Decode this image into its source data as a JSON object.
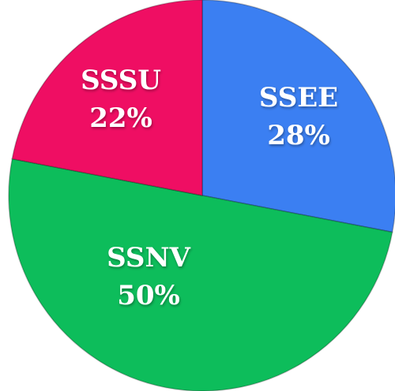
{
  "chart_data": {
    "type": "pie",
    "categories": [
      "SSEE",
      "SSNV",
      "SSSU"
    ],
    "values": [
      28,
      50,
      22
    ],
    "value_labels": [
      "28%",
      "50%",
      "22%"
    ],
    "colors": [
      "#3b7ff2",
      "#0dbd5b",
      "#ef0e63"
    ]
  }
}
